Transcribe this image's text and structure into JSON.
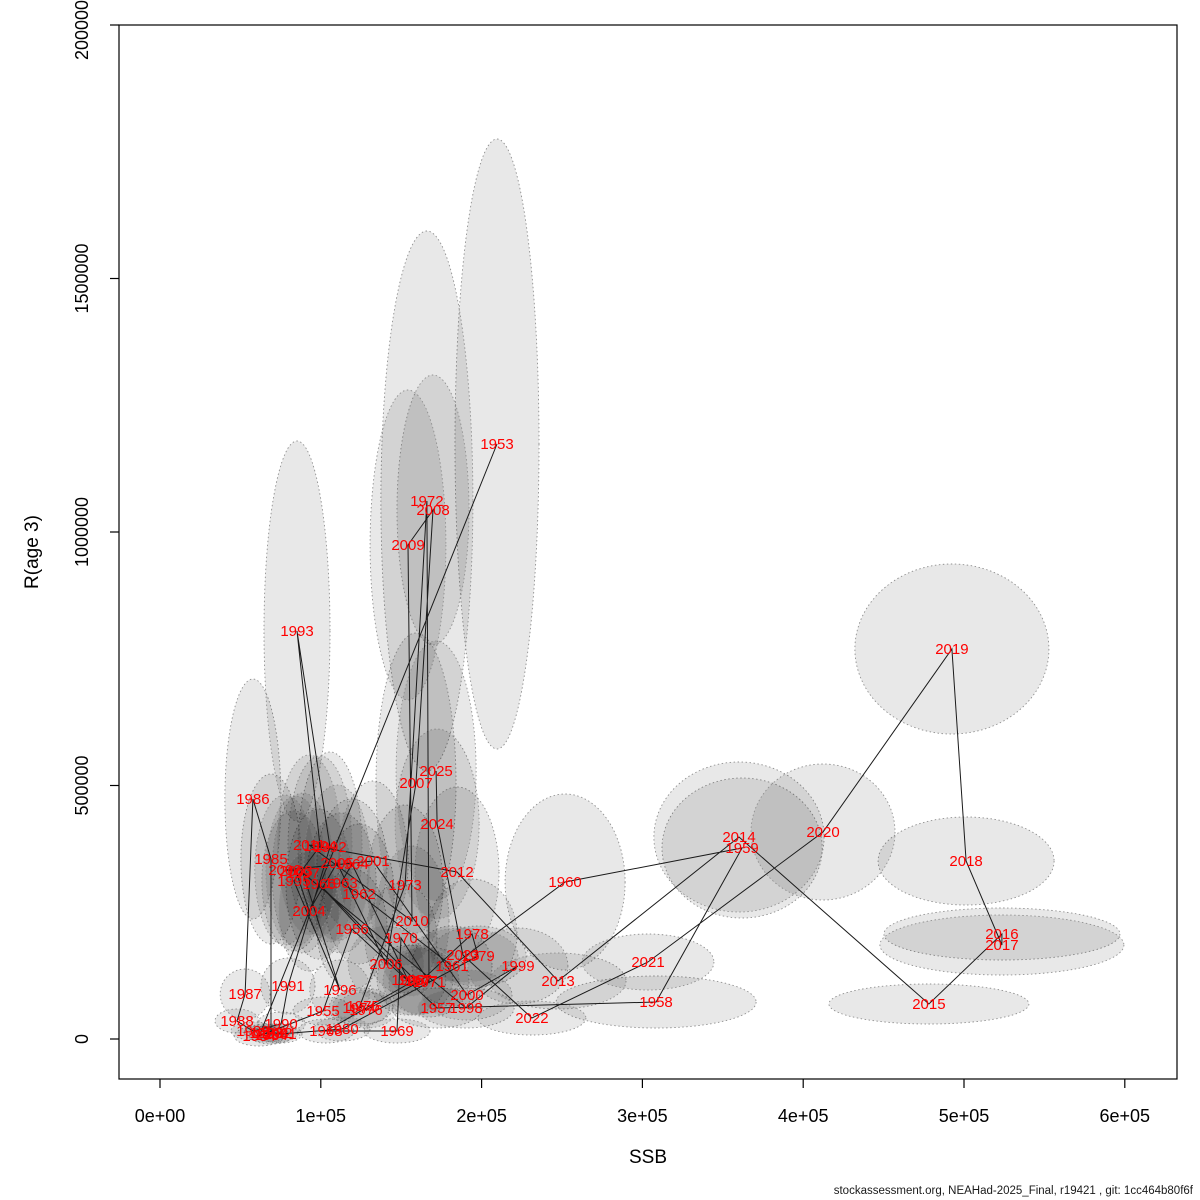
{
  "footer": "stockassessment.org, NEAHad-2025_Final, r19421 , git: 1cc464b80f6f",
  "chart_data": {
    "type": "scatter",
    "title": "",
    "xlabel": "SSB",
    "ylabel": "R(age 3)",
    "xlim": [
      0,
      632000
    ],
    "ylim": [
      0,
      2000000
    ],
    "grid": false,
    "legend": "none",
    "x_ticks": [
      {
        "value": 0,
        "label": "0e+00"
      },
      {
        "value": 100000,
        "label": "1e+05"
      },
      {
        "value": 200000,
        "label": "2e+05"
      },
      {
        "value": 300000,
        "label": "3e+05"
      },
      {
        "value": 400000,
        "label": "4e+05"
      },
      {
        "value": 500000,
        "label": "5e+05"
      },
      {
        "value": 600000,
        "label": "6e+05"
      }
    ],
    "y_ticks": [
      {
        "value": 0,
        "label": "0"
      },
      {
        "value": 500000,
        "label": "500000"
      },
      {
        "value": 1000000,
        "label": "1000000"
      },
      {
        "value": 1500000,
        "label": "1500000"
      },
      {
        "value": 2000000,
        "label": "2000000"
      }
    ],
    "points_format": [
      "year",
      "ssb",
      "recruitment_age3",
      "ssb_halfwidth",
      "recruitment_halfwidth"
    ],
    "points": [
      [
        1953,
        209600,
        1173600,
        26100,
        601600
      ],
      [
        1954,
        61600,
        5900,
        15500,
        19700
      ],
      [
        1955,
        101400,
        55200,
        18700,
        27600
      ],
      [
        1956,
        119400,
        217000,
        21800,
        118300
      ],
      [
        1957,
        172300,
        61100,
        28000,
        39400
      ],
      [
        1958,
        308500,
        73000,
        62200,
        51300
      ],
      [
        1959,
        362000,
        376700,
        49800,
        138100
      ],
      [
        1960,
        251900,
        309700,
        37300,
        173600
      ],
      [
        1961,
        181600,
        144000,
        24900,
        78900
      ],
      [
        1962,
        123800,
        286000,
        21800,
        138100
      ],
      [
        1963,
        112600,
        307700,
        21800,
        138100
      ],
      [
        1964,
        119400,
        345200,
        21800,
        128200
      ],
      [
        1965,
        154200,
        116400,
        23600,
        69000
      ],
      [
        1966,
        98900,
        305700,
        20500,
        147900
      ],
      [
        1967,
        158600,
        116400,
        23600,
        69000
      ],
      [
        1968,
        103200,
        15800,
        17400,
        23700
      ],
      [
        1969,
        147400,
        15800,
        20500,
        23700
      ],
      [
        1970,
        149900,
        199200,
        22400,
        108500
      ],
      [
        1971,
        167300,
        112400,
        24900,
        69000
      ],
      [
        1972,
        166000,
        1061100,
        28600,
        532500
      ],
      [
        1973,
        152400,
        303700,
        23600,
        157800
      ],
      [
        1974,
        123800,
        61100,
        18700,
        35500
      ],
      [
        1975,
        126300,
        65100,
        18700,
        35500
      ],
      [
        1976,
        128100,
        57200,
        18700,
        35500
      ],
      [
        1977,
        162300,
        114400,
        23600,
        65100
      ],
      [
        1978,
        194000,
        207100,
        28000,
        108500
      ],
      [
        1979,
        197800,
        163700,
        29900,
        59200
      ],
      [
        1980,
        113200,
        19700,
        17400,
        23700
      ],
      [
        1981,
        74600,
        9900,
        13700,
        17800
      ],
      [
        1982,
        72100,
        11800,
        13700,
        17800
      ],
      [
        1983,
        65900,
        11800,
        13700,
        17800
      ],
      [
        1984,
        69000,
        7900,
        13700,
        17800
      ],
      [
        1985,
        69000,
        355000,
        18700,
        167700
      ],
      [
        1986,
        57800,
        473400,
        17400,
        236700
      ],
      [
        1987,
        52900,
        88800,
        15500,
        49300
      ],
      [
        1988,
        47900,
        35500,
        13700,
        23700
      ],
      [
        1989,
        57800,
        15800,
        13700,
        17800
      ],
      [
        1990,
        75300,
        29600,
        14900,
        23700
      ],
      [
        1991,
        79600,
        104500,
        16800,
        55200
      ],
      [
        1992,
        105700,
        378700,
        19900,
        187400
      ],
      [
        1993,
        85200,
        804700,
        20500,
        374800
      ],
      [
        1994,
        99500,
        380700,
        19900,
        177500
      ],
      [
        1995,
        83300,
        311600,
        19900,
        138100
      ],
      [
        1996,
        111900,
        96600,
        18700,
        59200
      ],
      [
        1997,
        88900,
        327400,
        19300,
        157800
      ],
      [
        1998,
        190300,
        61100,
        29900,
        39400
      ],
      [
        1999,
        222600,
        144000,
        31100,
        74900
      ],
      [
        2000,
        190900,
        86800,
        28000,
        49300
      ],
      [
        2001,
        132500,
        351100,
        21800,
        157800
      ],
      [
        2002,
        77700,
        333300,
        18700,
        147900
      ],
      [
        2003,
        84600,
        331400,
        18700,
        147900
      ],
      [
        2004,
        92700,
        252500,
        18700,
        118300
      ],
      [
        2005,
        110100,
        347100,
        20500,
        153800
      ],
      [
        2006,
        140600,
        147900,
        23600,
        74900
      ],
      [
        2007,
        159200,
        504900,
        24900,
        295900
      ],
      [
        2008,
        169800,
        1043400,
        22400,
        266300
      ],
      [
        2009,
        154200,
        974400,
        23600,
        305700
      ],
      [
        2010,
        156700,
        232700,
        23000,
        147900
      ],
      [
        2011,
        92700,
        382600,
        19900,
        177500
      ],
      [
        2012,
        184700,
        329400,
        26100,
        167700
      ],
      [
        2013,
        247500,
        114400,
        42300,
        55200
      ],
      [
        2014,
        360100,
        398400,
        52900,
        147900
      ],
      [
        2015,
        478200,
        69000,
        62200,
        39400
      ],
      [
        2016,
        523600,
        207100,
        73400,
        51300
      ],
      [
        2017,
        523600,
        185400,
        75900,
        59200
      ],
      [
        2018,
        501300,
        351100,
        54700,
        86800
      ],
      [
        2019,
        492500,
        769200,
        60300,
        167700
      ],
      [
        2020,
        412300,
        408300,
        44800,
        134100
      ],
      [
        2021,
        303500,
        151900,
        41000,
        55200
      ],
      [
        2022,
        231300,
        41400,
        33600,
        33500
      ],
      [
        2023,
        188400,
        165700,
        34200,
        53300
      ],
      [
        2024,
        172300,
        424100,
        26100,
        187400
      ],
      [
        2025,
        171700,
        528600,
        24900,
        256400
      ]
    ],
    "colors": {
      "year_label": "#ff0000",
      "ellipse_fill": "rgba(0,0,0,0.09)",
      "ellipse_stroke": "#909090",
      "line": "#1a1a1a",
      "axis": "#000000",
      "footer_text": "#1a1a1a"
    }
  }
}
